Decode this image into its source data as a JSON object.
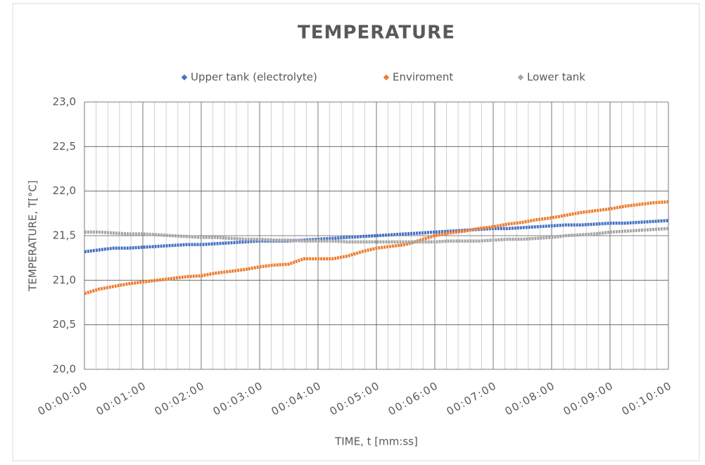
{
  "chart_data": {
    "type": "line",
    "title": "TEMPERATURE",
    "x_label": "TIME, t [mm:ss]",
    "y_label": "TEMPERATURE, T[°C]",
    "x": [
      0,
      15,
      30,
      45,
      60,
      75,
      90,
      105,
      120,
      135,
      150,
      165,
      180,
      195,
      210,
      225,
      240,
      255,
      270,
      285,
      300,
      315,
      330,
      345,
      360,
      375,
      390,
      405,
      420,
      435,
      450,
      465,
      480,
      495,
      510,
      525,
      540,
      555,
      570,
      585,
      600
    ],
    "series": [
      {
        "name": "Upper tank (electrolyte)",
        "color": "#4472c4",
        "values": [
          21.32,
          21.34,
          21.36,
          21.36,
          21.37,
          21.38,
          21.39,
          21.4,
          21.4,
          21.41,
          21.42,
          21.43,
          21.44,
          21.44,
          21.44,
          21.45,
          21.46,
          21.47,
          21.48,
          21.49,
          21.5,
          21.51,
          21.52,
          21.53,
          21.54,
          21.55,
          21.56,
          21.57,
          21.58,
          21.58,
          21.59,
          21.6,
          21.61,
          21.62,
          21.62,
          21.63,
          21.64,
          21.64,
          21.65,
          21.66,
          21.67
        ]
      },
      {
        "name": "Enviroment",
        "color": "#ed7d31",
        "values": [
          20.85,
          20.9,
          20.93,
          20.96,
          20.98,
          21.0,
          21.02,
          21.04,
          21.05,
          21.08,
          21.1,
          21.12,
          21.15,
          21.17,
          21.18,
          21.24,
          21.24,
          21.24,
          21.27,
          21.32,
          21.36,
          21.38,
          21.4,
          21.45,
          21.5,
          21.53,
          21.55,
          21.58,
          21.6,
          21.63,
          21.65,
          21.68,
          21.7,
          21.73,
          21.76,
          21.78,
          21.8,
          21.83,
          21.85,
          21.87,
          21.88
        ]
      },
      {
        "name": "Lower tank",
        "color": "#a5a5a5",
        "values": [
          21.54,
          21.54,
          21.53,
          21.52,
          21.52,
          21.51,
          21.5,
          21.49,
          21.48,
          21.48,
          21.47,
          21.46,
          21.46,
          21.45,
          21.45,
          21.44,
          21.44,
          21.44,
          21.43,
          21.43,
          21.43,
          21.43,
          21.43,
          21.43,
          21.43,
          21.44,
          21.44,
          21.44,
          21.45,
          21.46,
          21.46,
          21.47,
          21.48,
          21.5,
          21.51,
          21.52,
          21.54,
          21.55,
          21.56,
          21.57,
          21.58
        ]
      }
    ],
    "xlim": [
      0,
      600
    ],
    "xticks": [
      {
        "value": 0,
        "label": "00:00:00"
      },
      {
        "value": 60,
        "label": "00:01:00"
      },
      {
        "value": 120,
        "label": "00:02:00"
      },
      {
        "value": 180,
        "label": "00:03:00"
      },
      {
        "value": 240,
        "label": "00:04:00"
      },
      {
        "value": 300,
        "label": "00:05:00"
      },
      {
        "value": 360,
        "label": "00:06:00"
      },
      {
        "value": 420,
        "label": "00:07:00"
      },
      {
        "value": 480,
        "label": "00:08:00"
      },
      {
        "value": 540,
        "label": "00:09:00"
      },
      {
        "value": 600,
        "label": "00:10:00"
      }
    ],
    "xminorticks": [
      12,
      24,
      36,
      48,
      72,
      84,
      96,
      108,
      132,
      144,
      156,
      168,
      192,
      204,
      216,
      228,
      252,
      264,
      276,
      288,
      312,
      324,
      336,
      348,
      372,
      384,
      396,
      408,
      432,
      444,
      456,
      468,
      492,
      504,
      516,
      528,
      552,
      564,
      576,
      588
    ],
    "ylim": [
      20,
      23
    ],
    "yticks": [
      {
        "value": 20,
        "label": "20,0"
      },
      {
        "value": 20.5,
        "label": "20,5"
      },
      {
        "value": 21,
        "label": "21,0"
      },
      {
        "value": 21.5,
        "label": "21,5"
      },
      {
        "value": 22,
        "label": "22,0"
      },
      {
        "value": 22.5,
        "label": "22,5"
      },
      {
        "value": 23,
        "label": "23,0"
      }
    ],
    "grid": true,
    "legend": "top"
  }
}
